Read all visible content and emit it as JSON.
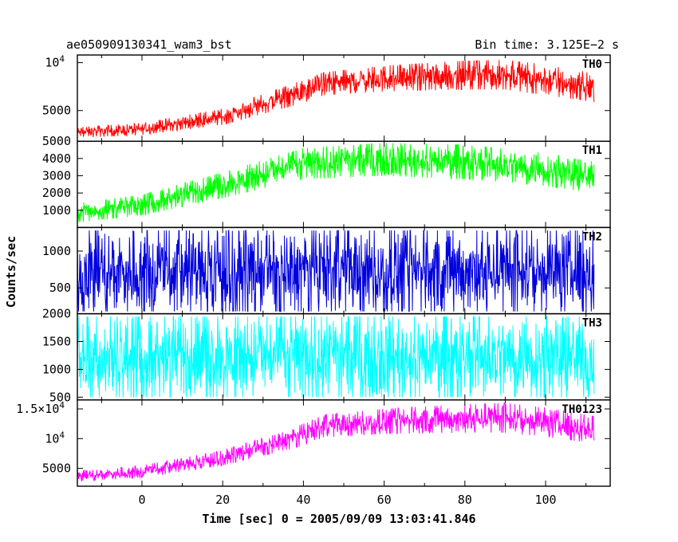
{
  "header": {
    "title": "ae050909130341_wam3_bst",
    "bin_time": "Bin time: 3.125E−2 s"
  },
  "chart_data": {
    "type": "line",
    "title": "ae050909130341_wam3_bst",
    "xlabel": "Time [sec] 0 = 2005/09/09 13:03:41.846",
    "ylabel": "Counts/sec",
    "xlim": [
      -16,
      116
    ],
    "x_ticks": [
      "0",
      "20",
      "40",
      "60",
      "80",
      "100"
    ],
    "x_data_range": [
      -16,
      112
    ],
    "panels": [
      {
        "name": "TH0",
        "color": "#ff0000",
        "ylim": [
          1800,
          10800
        ],
        "ticks": [
          {
            "v": 10000,
            "l": "10",
            "e": "4"
          },
          {
            "v": 5000,
            "l": "5000"
          }
        ],
        "envelope": [
          [
            -16,
            2150,
            3250
          ],
          [
            0,
            2450,
            3700
          ],
          [
            20,
            3500,
            5200
          ],
          [
            40,
            5800,
            8200
          ],
          [
            45,
            6600,
            9000
          ],
          [
            60,
            7000,
            9700
          ],
          [
            80,
            7200,
            10200
          ],
          [
            90,
            7200,
            10300
          ],
          [
            100,
            6600,
            9800
          ],
          [
            112,
            5900,
            8900
          ]
        ]
      },
      {
        "name": "TH1",
        "color": "#00ff00",
        "ylim": [
          0,
          5000
        ],
        "ticks": [
          {
            "v": 5000,
            "l": "5000"
          },
          {
            "v": 4000,
            "l": "4000"
          },
          {
            "v": 3000,
            "l": "3000"
          },
          {
            "v": 2000,
            "l": "2000"
          },
          {
            "v": 1000,
            "l": "1000"
          }
        ],
        "envelope": [
          [
            -16,
            300,
            1400
          ],
          [
            0,
            700,
            1900
          ],
          [
            20,
            1700,
            3200
          ],
          [
            40,
            2800,
            4600
          ],
          [
            60,
            3000,
            4900
          ],
          [
            80,
            2800,
            4800
          ],
          [
            100,
            2400,
            4300
          ],
          [
            112,
            2000,
            3800
          ]
        ]
      },
      {
        "name": "TH2",
        "color": "#0000dd",
        "ylim": [
          150,
          1320
        ],
        "ticks": [
          {
            "v": 1000,
            "l": "1000"
          },
          {
            "v": 500,
            "l": "500"
          }
        ],
        "envelope": [
          [
            -16,
            180,
            1280
          ],
          [
            112,
            180,
            1280
          ]
        ]
      },
      {
        "name": "TH3",
        "color": "#00ffff",
        "ylim": [
          450,
          2000
        ],
        "ticks": [
          {
            "v": 2000,
            "l": "2000"
          },
          {
            "v": 1500,
            "l": "1500"
          },
          {
            "v": 1000,
            "l": "1000"
          },
          {
            "v": 500,
            "l": "500"
          }
        ],
        "envelope": [
          [
            -16,
            500,
            1950
          ],
          [
            112,
            500,
            1950
          ]
        ]
      },
      {
        "name": "TH0123",
        "color": "#ff00ff",
        "ylim": [
          2000,
          16500
        ],
        "ticks": [
          {
            "v": 15000,
            "l": "1.5×10",
            "e": "4"
          },
          {
            "v": 10000,
            "l": "10",
            "e": "4"
          },
          {
            "v": 5000,
            "l": "5000"
          }
        ],
        "envelope": [
          [
            -16,
            2800,
            4600
          ],
          [
            0,
            3400,
            5500
          ],
          [
            20,
            5500,
            8000
          ],
          [
            40,
            8800,
            12500
          ],
          [
            45,
            10200,
            14000
          ],
          [
            60,
            10800,
            15000
          ],
          [
            80,
            11000,
            15800
          ],
          [
            90,
            11000,
            16000
          ],
          [
            100,
            10300,
            15200
          ],
          [
            112,
            9200,
            13800
          ]
        ]
      }
    ]
  }
}
